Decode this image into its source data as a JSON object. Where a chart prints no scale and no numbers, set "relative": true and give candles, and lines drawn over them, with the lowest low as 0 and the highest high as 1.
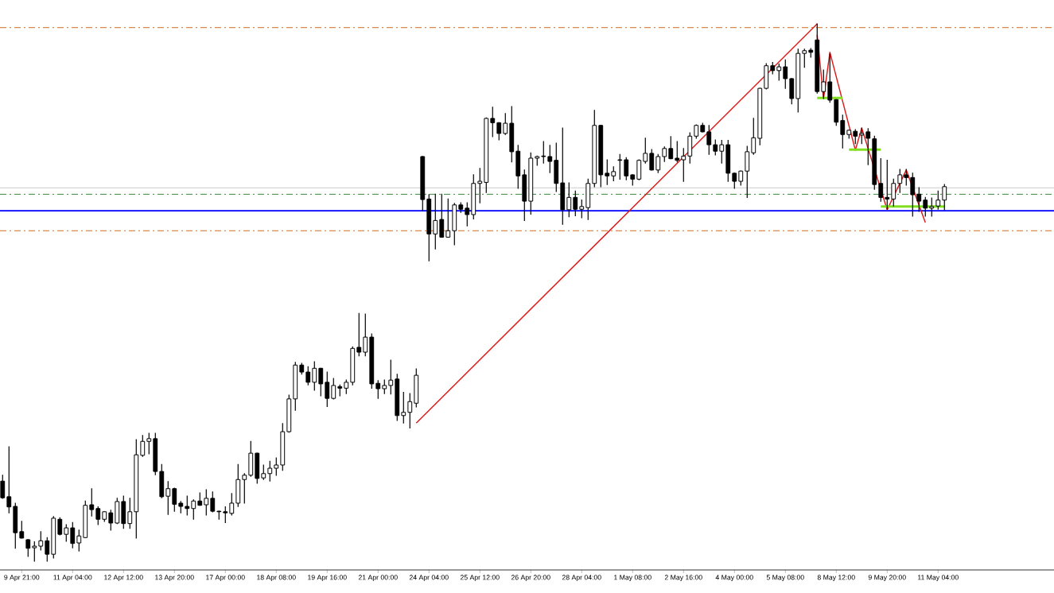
{
  "chart_data": {
    "type": "candlestick",
    "relative": true,
    "categories": [
      null,
      null,
      null,
      "9 Apr 21:00",
      null,
      null,
      null,
      null,
      null,
      null,
      null,
      "11 Apr 04:00",
      null,
      null,
      null,
      null,
      null,
      null,
      null,
      "12 Apr 12:00",
      null,
      null,
      null,
      null,
      null,
      null,
      null,
      "13 Apr 20:00",
      null,
      null,
      null,
      null,
      null,
      null,
      null,
      "17 Apr 00:00",
      null,
      null,
      null,
      null,
      null,
      null,
      null,
      "18 Apr 08:00",
      null,
      null,
      null,
      null,
      null,
      null,
      null,
      "19 Apr 16:00",
      null,
      null,
      null,
      null,
      null,
      null,
      null,
      "21 Apr 00:00",
      null,
      null,
      null,
      null,
      null,
      null,
      null,
      "24 Apr 04:00",
      null,
      null,
      null,
      null,
      null,
      null,
      null,
      "25 Apr 12:00",
      null,
      null,
      null,
      null,
      null,
      null,
      null,
      "26 Apr 20:00",
      null,
      null,
      null,
      null,
      null,
      null,
      null,
      "28 Apr 04:00",
      null,
      null,
      null,
      null,
      null,
      null,
      null,
      "1 May 08:00",
      null,
      null,
      null,
      null,
      null,
      null,
      null,
      "2 May 16:00",
      null,
      null,
      null,
      null,
      null,
      null,
      null,
      "4 May 00:00",
      null,
      null,
      null,
      null,
      null,
      null,
      null,
      "5 May 08:00",
      null,
      null,
      null,
      null,
      null,
      null,
      null,
      "8 May 12:00",
      null,
      null,
      null,
      null,
      null,
      null,
      null,
      "9 May 20:00",
      null,
      null,
      null,
      null,
      null,
      null,
      null,
      "11 May 04:00",
      null
    ],
    "ohlc": [
      [
        0.149,
        0.16,
        0.117,
        0.118
      ],
      [
        0.12,
        0.213,
        0.09,
        0.101
      ],
      [
        0.102,
        0.108,
        0.024,
        0.053
      ],
      [
        0.055,
        0.074,
        0.043,
        0.043
      ],
      [
        0.04,
        0.04,
        0.009,
        0.024
      ],
      [
        0.025,
        0.036,
        0,
        0.028
      ],
      [
        0.028,
        0.055,
        0.021,
        0.038
      ],
      [
        0.038,
        0.044,
        0,
        0.013
      ],
      [
        0.013,
        0.083,
        0.006,
        0.08
      ],
      [
        0.078,
        0.081,
        0.049,
        0.05
      ],
      [
        0.05,
        0.068,
        0.037,
        0.062
      ],
      [
        0.062,
        0.072,
        0.025,
        0.033
      ],
      [
        0.034,
        0.058,
        0.019,
        0.047
      ],
      [
        0.044,
        0.112,
        0.044,
        0.104
      ],
      [
        0.105,
        0.135,
        0.084,
        0.096
      ],
      [
        0.098,
        0.101,
        0.068,
        0.078
      ],
      [
        0.078,
        0.092,
        0.074,
        0.092
      ],
      [
        0.09,
        0.095,
        0.058,
        0.071
      ],
      [
        0.071,
        0.117,
        0.07,
        0.111
      ],
      [
        0.111,
        0.121,
        0.061,
        0.07
      ],
      [
        0.07,
        0.117,
        0.061,
        0.092
      ],
      [
        0.092,
        0.226,
        0.043,
        0.198
      ],
      [
        0.197,
        0.234,
        0.195,
        0.223
      ],
      [
        0.223,
        0.238,
        0.2,
        0.228
      ],
      [
        0.228,
        0.238,
        0.161,
        0.167
      ],
      [
        0.167,
        0.18,
        0.118,
        0.12
      ],
      [
        0.121,
        0.148,
        0.087,
        0.135
      ],
      [
        0.135,
        0.136,
        0.093,
        0.106
      ],
      [
        0.108,
        0.111,
        0.09,
        0.102
      ],
      [
        0.102,
        0.121,
        0.086,
        0.098
      ],
      [
        0.098,
        0.114,
        0.078,
        0.112
      ],
      [
        0.112,
        0.127,
        0.104,
        0.104
      ],
      [
        0.105,
        0.133,
        0.086,
        0.117
      ],
      [
        0.117,
        0.129,
        0.092,
        0.093
      ],
      [
        0.093,
        0.093,
        0.078,
        0.092
      ],
      [
        0.092,
        0.101,
        0.072,
        0.09
      ],
      [
        0.089,
        0.126,
        0.086,
        0.108
      ],
      [
        0.108,
        0.18,
        0.102,
        0.152
      ],
      [
        0.152,
        0.163,
        0.108,
        0.16
      ],
      [
        0.16,
        0.223,
        0.158,
        0.201
      ],
      [
        0.201,
        0.201,
        0.145,
        0.154
      ],
      [
        0.155,
        0.179,
        0.152,
        0.163
      ],
      [
        0.163,
        0.186,
        0.149,
        0.173
      ],
      [
        0.173,
        0.192,
        0.16,
        0.179
      ],
      [
        0.179,
        0.256,
        0.169,
        0.241
      ],
      [
        0.241,
        0.309,
        0.24,
        0.302
      ],
      [
        0.302,
        0.37,
        0.281,
        0.365
      ],
      [
        0.365,
        0.368,
        0.348,
        0.352
      ],
      [
        0.352,
        0.362,
        0.328,
        0.333
      ],
      [
        0.333,
        0.371,
        0.318,
        0.359
      ],
      [
        0.359,
        0.359,
        0.308,
        0.33
      ],
      [
        0.333,
        0.352,
        0.288,
        0.303
      ],
      [
        0.303,
        0.34,
        0.302,
        0.327
      ],
      [
        0.325,
        0.328,
        0.308,
        0.322
      ],
      [
        0.322,
        0.337,
        0.312,
        0.333
      ],
      [
        0.333,
        0.399,
        0.328,
        0.396
      ],
      [
        0.398,
        0.461,
        0.382,
        0.389
      ],
      [
        0.389,
        0.46,
        0.382,
        0.417
      ],
      [
        0.417,
        0.423,
        0.322,
        0.33
      ],
      [
        0.331,
        0.336,
        0.303,
        0.321
      ],
      [
        0.321,
        0.337,
        0.312,
        0.327
      ],
      [
        0.327,
        0.374,
        0.311,
        0.337
      ],
      [
        0.339,
        0.348,
        0.262,
        0.271
      ],
      [
        0.271,
        0.314,
        0.257,
        0.277
      ],
      [
        0.277,
        0.312,
        0.248,
        0.297
      ],
      [
        0.294,
        0.358,
        0.287,
        0.346
      ],
      [
        0.753,
        0.753,
        0.652,
        0.673
      ],
      [
        0.674,
        0.682,
        0.559,
        0.609
      ],
      [
        0.609,
        0.683,
        0.581,
        0.634
      ],
      [
        0.636,
        0.683,
        0.603,
        0.603
      ],
      [
        0.603,
        0.674,
        0.603,
        0.615
      ],
      [
        0.615,
        0.666,
        0.589,
        0.663
      ],
      [
        0.663,
        0.667,
        0.649,
        0.655
      ],
      [
        0.657,
        0.667,
        0.624,
        0.645
      ],
      [
        0.645,
        0.719,
        0.637,
        0.703
      ],
      [
        0.703,
        0.731,
        0.667,
        0.707
      ],
      [
        0.705,
        0.825,
        0.686,
        0.824
      ],
      [
        0.824,
        0.845,
        0.79,
        0.816
      ],
      [
        0.816,
        0.816,
        0.784,
        0.796
      ],
      [
        0.796,
        0.833,
        0.794,
        0.815
      ],
      [
        0.815,
        0.846,
        0.743,
        0.762
      ],
      [
        0.763,
        0.774,
        0.694,
        0.717
      ],
      [
        0.719,
        0.728,
        0.634,
        0.67
      ],
      [
        0.67,
        0.76,
        0.646,
        0.75
      ],
      [
        0.75,
        0.754,
        0.737,
        0.753
      ],
      [
        0.754,
        0.781,
        0.741,
        0.753
      ],
      [
        0.753,
        0.774,
        0.723,
        0.744
      ],
      [
        0.746,
        0.778,
        0.688,
        0.703
      ],
      [
        0.704,
        0.806,
        0.627,
        0.654
      ],
      [
        0.654,
        0.704,
        0.641,
        0.677
      ],
      [
        0.677,
        0.689,
        0.643,
        0.655
      ],
      [
        0.655,
        0.672,
        0.639,
        0.66
      ],
      [
        0.658,
        0.711,
        0.636,
        0.703
      ],
      [
        0.703,
        0.839,
        0.697,
        0.811
      ],
      [
        0.811,
        0.811,
        0.697,
        0.719
      ],
      [
        0.722,
        0.747,
        0.701,
        0.717
      ],
      [
        0.717,
        0.734,
        0.708,
        0.725
      ],
      [
        0.747,
        0.757,
        0.711,
        0.746
      ],
      [
        0.747,
        0.751,
        0.71,
        0.717
      ],
      [
        0.719,
        0.719,
        0.7,
        0.711
      ],
      [
        0.711,
        0.747,
        0.71,
        0.746
      ],
      [
        0.744,
        0.787,
        0.741,
        0.759
      ],
      [
        0.759,
        0.766,
        0.728,
        0.728
      ],
      [
        0.728,
        0.757,
        0.723,
        0.753
      ],
      [
        0.753,
        0.771,
        0.744,
        0.768
      ],
      [
        0.768,
        0.79,
        0.749,
        0.749
      ],
      [
        0.75,
        0.781,
        0.743,
        0.746
      ],
      [
        0.747,
        0.768,
        0.707,
        0.754
      ],
      [
        0.754,
        0.797,
        0.741,
        0.791
      ],
      [
        0.791,
        0.812,
        0.787,
        0.811
      ],
      [
        0.811,
        0.815,
        0.799,
        0.799
      ],
      [
        0.799,
        0.811,
        0.757,
        0.775
      ],
      [
        0.775,
        0.784,
        0.756,
        0.763
      ],
      [
        0.763,
        0.783,
        0.741,
        0.775
      ],
      [
        0.775,
        0.783,
        0.707,
        0.722
      ],
      [
        0.722,
        0.722,
        0.694,
        0.707
      ],
      [
        0.707,
        0.726,
        0.7,
        0.726
      ],
      [
        0.726,
        0.772,
        0.677,
        0.762
      ],
      [
        0.76,
        0.824,
        0.757,
        0.788
      ],
      [
        0.787,
        0.88,
        0.775,
        0.88
      ],
      [
        0.88,
        0.926,
        0.879,
        0.922
      ],
      [
        0.922,
        0.928,
        0.907,
        0.913
      ],
      [
        0.913,
        0.925,
        0.895,
        0.92
      ],
      [
        0.92,
        0.933,
        0.88,
        0.898
      ],
      [
        0.898,
        0.898,
        0.851,
        0.861
      ],
      [
        0.861,
        0.953,
        0.836,
        0.945
      ],
      [
        0.945,
        0.953,
        0.919,
        0.95
      ],
      [
        0.951,
        0.954,
        0.938,
        0.947
      ],
      [
        0.97,
        1,
        0.871,
        0.874
      ],
      [
        0.874,
        0.914,
        0.861,
        0.892
      ],
      [
        0.892,
        0.944,
        0.854,
        0.858
      ],
      [
        0.859,
        0.859,
        0.811,
        0.817
      ],
      [
        0.82,
        0.83,
        0.769,
        0.794
      ],
      [
        0.794,
        0.802,
        0.787,
        0.802
      ],
      [
        0.8,
        0.803,
        0.777,
        0.791
      ],
      [
        0.793,
        0.806,
        0.777,
        0.796
      ],
      [
        0.799,
        0.805,
        0.738,
        0.787
      ],
      [
        0.786,
        0.791,
        0.692,
        0.701
      ],
      [
        0.703,
        0.749,
        0.67,
        0.677
      ],
      [
        0.677,
        0.746,
        0.655,
        0.674
      ],
      [
        0.674,
        0.711,
        0.661,
        0.703
      ],
      [
        0.703,
        0.729,
        0.686,
        0.719
      ],
      [
        0.719,
        0.729,
        0.7,
        0.714
      ],
      [
        0.714,
        0.722,
        0.642,
        0.682
      ],
      [
        0.683,
        0.695,
        0.651,
        0.67
      ],
      [
        0.672,
        0.677,
        0.642,
        0.657
      ],
      [
        0.657,
        0.676,
        0.642,
        0.66
      ],
      [
        0.661,
        0.689,
        0.655,
        0.672
      ],
      [
        0.672,
        0.701,
        0.654,
        0.697
      ]
    ],
    "series": [
      {
        "type": "line",
        "color": "#dd1c1c",
        "values": [
          null,
          null,
          null,
          null,
          null,
          null,
          null,
          null,
          null,
          null,
          null,
          null,
          null,
          null,
          null,
          null,
          null,
          null,
          null,
          null,
          null,
          null,
          null,
          null,
          null,
          null,
          null,
          null,
          null,
          null,
          null,
          null,
          null,
          null,
          null,
          null,
          null,
          null,
          null,
          null,
          null,
          null,
          null,
          null,
          null,
          null,
          null,
          null,
          null,
          null,
          null,
          null,
          null,
          null,
          null,
          null,
          null,
          null,
          null,
          null,
          null,
          null,
          null,
          null,
          null,
          0.257,
          null,
          null,
          null,
          null,
          null,
          null,
          null,
          null,
          null,
          null,
          null,
          null,
          null,
          null,
          null,
          null,
          null,
          null,
          null,
          null,
          null,
          null,
          null,
          null,
          null,
          null,
          null,
          null,
          null,
          null,
          null,
          null,
          null,
          null,
          null,
          null,
          null,
          null,
          null,
          null,
          null,
          null,
          null,
          null,
          null,
          null,
          null,
          null,
          null,
          null,
          null,
          null,
          null,
          null,
          null,
          null,
          null,
          null,
          null,
          null,
          null,
          null,
          1,
          null,
          null,
          null,
          null,
          null,
          null,
          null,
          null,
          null,
          null,
          null,
          null,
          null,
          null,
          null,
          null,
          null,
          null,
          null,
          null
        ]
      },
      {
        "type": "line",
        "color": "#dd1c1c",
        "values": [
          null,
          null,
          null,
          null,
          null,
          null,
          null,
          null,
          null,
          null,
          null,
          null,
          null,
          null,
          null,
          null,
          null,
          null,
          null,
          null,
          null,
          null,
          null,
          null,
          null,
          null,
          null,
          null,
          null,
          null,
          null,
          null,
          null,
          null,
          null,
          null,
          null,
          null,
          null,
          null,
          null,
          null,
          null,
          null,
          null,
          null,
          null,
          null,
          null,
          null,
          null,
          null,
          null,
          null,
          null,
          null,
          null,
          null,
          null,
          null,
          null,
          null,
          null,
          null,
          null,
          null,
          null,
          null,
          null,
          null,
          null,
          null,
          null,
          null,
          null,
          null,
          null,
          null,
          null,
          null,
          null,
          null,
          null,
          null,
          null,
          null,
          null,
          null,
          null,
          null,
          null,
          null,
          null,
          null,
          null,
          null,
          null,
          null,
          null,
          null,
          null,
          null,
          null,
          null,
          null,
          null,
          null,
          null,
          null,
          null,
          null,
          null,
          null,
          null,
          null,
          null,
          null,
          null,
          null,
          null,
          null,
          null,
          null,
          null,
          null,
          null,
          null,
          null,
          0.979,
          0.861,
          0.947,
          null,
          null,
          null,
          0.765,
          0.806,
          null,
          null,
          null,
          0.654,
          null,
          null,
          0.728,
          null,
          null,
          0.63,
          null,
          null,
          null
        ]
      },
      {
        "type": "line",
        "color": "#80e020",
        "values": [
          null,
          null,
          null,
          null,
          null,
          null,
          null,
          null,
          null,
          null,
          null,
          null,
          null,
          null,
          null,
          null,
          null,
          null,
          null,
          null,
          null,
          null,
          null,
          null,
          null,
          null,
          null,
          null,
          null,
          null,
          null,
          null,
          null,
          null,
          null,
          null,
          null,
          null,
          null,
          null,
          null,
          null,
          null,
          null,
          null,
          null,
          null,
          null,
          null,
          null,
          null,
          null,
          null,
          null,
          null,
          null,
          null,
          null,
          null,
          null,
          null,
          null,
          null,
          null,
          null,
          null,
          null,
          null,
          null,
          null,
          null,
          null,
          null,
          null,
          null,
          null,
          null,
          null,
          null,
          null,
          null,
          null,
          null,
          null,
          null,
          null,
          null,
          null,
          null,
          null,
          null,
          null,
          null,
          null,
          null,
          null,
          null,
          null,
          null,
          null,
          null,
          null,
          null,
          null,
          null,
          null,
          null,
          null,
          null,
          null,
          null,
          null,
          null,
          null,
          null,
          null,
          null,
          null,
          null,
          null,
          null,
          null,
          null,
          null,
          null,
          null,
          null,
          null,
          0.862,
          null,
          null,
          null,
          0.862,
          null,
          null,
          null,
          null,
          null,
          null,
          null,
          null,
          null,
          null,
          null,
          null,
          null,
          null,
          null,
          null
        ]
      },
      {
        "type": "line",
        "color": "#80e020",
        "values": [
          null,
          null,
          null,
          null,
          null,
          null,
          null,
          null,
          null,
          null,
          null,
          null,
          null,
          null,
          null,
          null,
          null,
          null,
          null,
          null,
          null,
          null,
          null,
          null,
          null,
          null,
          null,
          null,
          null,
          null,
          null,
          null,
          null,
          null,
          null,
          null,
          null,
          null,
          null,
          null,
          null,
          null,
          null,
          null,
          null,
          null,
          null,
          null,
          null,
          null,
          null,
          null,
          null,
          null,
          null,
          null,
          null,
          null,
          null,
          null,
          null,
          null,
          null,
          null,
          null,
          null,
          null,
          null,
          null,
          null,
          null,
          null,
          null,
          null,
          null,
          null,
          null,
          null,
          null,
          null,
          null,
          null,
          null,
          null,
          null,
          null,
          null,
          null,
          null,
          null,
          null,
          null,
          null,
          null,
          null,
          null,
          null,
          null,
          null,
          null,
          null,
          null,
          null,
          null,
          null,
          null,
          null,
          null,
          null,
          null,
          null,
          null,
          null,
          null,
          null,
          null,
          null,
          null,
          null,
          null,
          null,
          null,
          null,
          null,
          null,
          null,
          null,
          null,
          null,
          null,
          null,
          null,
          null,
          0.766,
          null,
          null,
          null,
          null,
          0.766,
          null,
          null,
          null,
          null,
          null,
          null,
          null,
          null,
          null,
          null
        ]
      },
      {
        "type": "line",
        "color": "#80e020",
        "values": [
          null,
          null,
          null,
          null,
          null,
          null,
          null,
          null,
          null,
          null,
          null,
          null,
          null,
          null,
          null,
          null,
          null,
          null,
          null,
          null,
          null,
          null,
          null,
          null,
          null,
          null,
          null,
          null,
          null,
          null,
          null,
          null,
          null,
          null,
          null,
          null,
          null,
          null,
          null,
          null,
          null,
          null,
          null,
          null,
          null,
          null,
          null,
          null,
          null,
          null,
          null,
          null,
          null,
          null,
          null,
          null,
          null,
          null,
          null,
          null,
          null,
          null,
          null,
          null,
          null,
          null,
          null,
          null,
          null,
          null,
          null,
          null,
          null,
          null,
          null,
          null,
          null,
          null,
          null,
          null,
          null,
          null,
          null,
          null,
          null,
          null,
          null,
          null,
          null,
          null,
          null,
          null,
          null,
          null,
          null,
          null,
          null,
          null,
          null,
          null,
          null,
          null,
          null,
          null,
          null,
          null,
          null,
          null,
          null,
          null,
          null,
          null,
          null,
          null,
          null,
          null,
          null,
          null,
          null,
          null,
          null,
          null,
          null,
          null,
          null,
          null,
          null,
          null,
          null,
          null,
          null,
          null,
          null,
          null,
          null,
          null,
          null,
          null,
          0.66,
          null,
          null,
          null,
          null,
          null,
          null,
          null,
          null,
          null,
          0.66
        ]
      }
    ],
    "ref_lines": [
      {
        "axis": "y",
        "value": 0.993,
        "color": "#d2691e",
        "line_style": "dashdot"
      },
      {
        "axis": "y",
        "value": 0.695,
        "color": "#c0c0c0",
        "line_style": "solid"
      },
      {
        "axis": "y",
        "value": 0.683,
        "color": "#1e7a1e",
        "line_style": "dashdot"
      },
      {
        "axis": "y",
        "value": 0.652,
        "color": "#0000ff",
        "line_style": "solid"
      },
      {
        "axis": "y",
        "value": 0.615,
        "color": "#d2691e",
        "line_style": "dashdot"
      }
    ]
  }
}
